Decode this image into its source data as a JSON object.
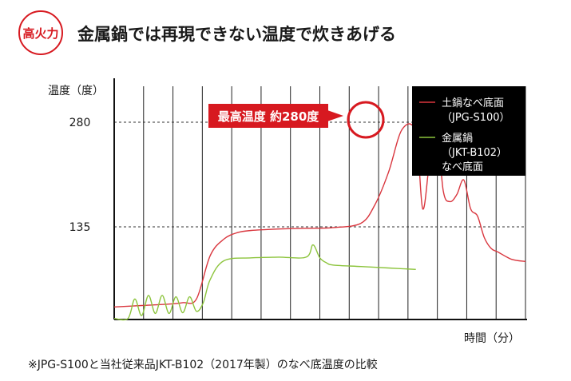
{
  "header": {
    "badge": "高火力",
    "title": "金属鍋では再現できない温度で炊きあげる"
  },
  "footnote": "※JPG-S100と当社従来品JKT-B102（2017年製）のなべ底温度の比較",
  "chart_data": {
    "type": "line",
    "ylabel": "温度（度）",
    "xlabel": "時間（分）",
    "yticks": [
      135,
      280
    ],
    "ylim": [
      0,
      340
    ],
    "xlim": [
      0,
      30
    ],
    "grid": "vertical lines; dashed horizontal reference lines at 135 and 280",
    "legend_placement": "top-right",
    "annotation": {
      "label": "最高温度 約280度",
      "target": "peak of 土鍋なべ底面 series"
    },
    "colors": {
      "series_1": "#d9363e",
      "series_2": "#8cc43c",
      "annotation": "#d71920",
      "legend_bg": "#000000"
    },
    "series": [
      {
        "name": "土鍋なべ底面\n（JPG-S100）",
        "x": [
          0,
          2,
          4,
          5,
          6,
          7,
          8,
          9,
          10,
          12,
          14,
          16,
          18,
          19,
          20,
          21,
          22,
          22.5,
          23,
          23.5,
          24,
          24.5,
          25,
          25.5,
          26,
          26.5,
          27,
          27.5,
          28,
          29,
          30
        ],
        "y": [
          24,
          26,
          28,
          30,
          35,
          95,
          118,
          127,
          130,
          132,
          133,
          134,
          140,
          165,
          210,
          270,
          265,
          160,
          225,
          278,
          185,
          170,
          180,
          200,
          160,
          150,
          120,
          105,
          100,
          90,
          87
        ]
      },
      {
        "name": "金属鍋\n（JKT-B102）\nなべ底面",
        "x": [
          0,
          1,
          1.5,
          2,
          2.5,
          3,
          3.5,
          4,
          4.5,
          5,
          5.5,
          6,
          6.5,
          7,
          8,
          10,
          12,
          14,
          14.5,
          15,
          15.5,
          16,
          18,
          20,
          22
        ],
        "y": [
          8,
          8,
          35,
          12,
          40,
          15,
          40,
          15,
          38,
          16,
          38,
          18,
          30,
          62,
          88,
          92,
          93,
          93,
          110,
          92,
          85,
          82,
          80,
          78,
          76
        ]
      }
    ]
  }
}
